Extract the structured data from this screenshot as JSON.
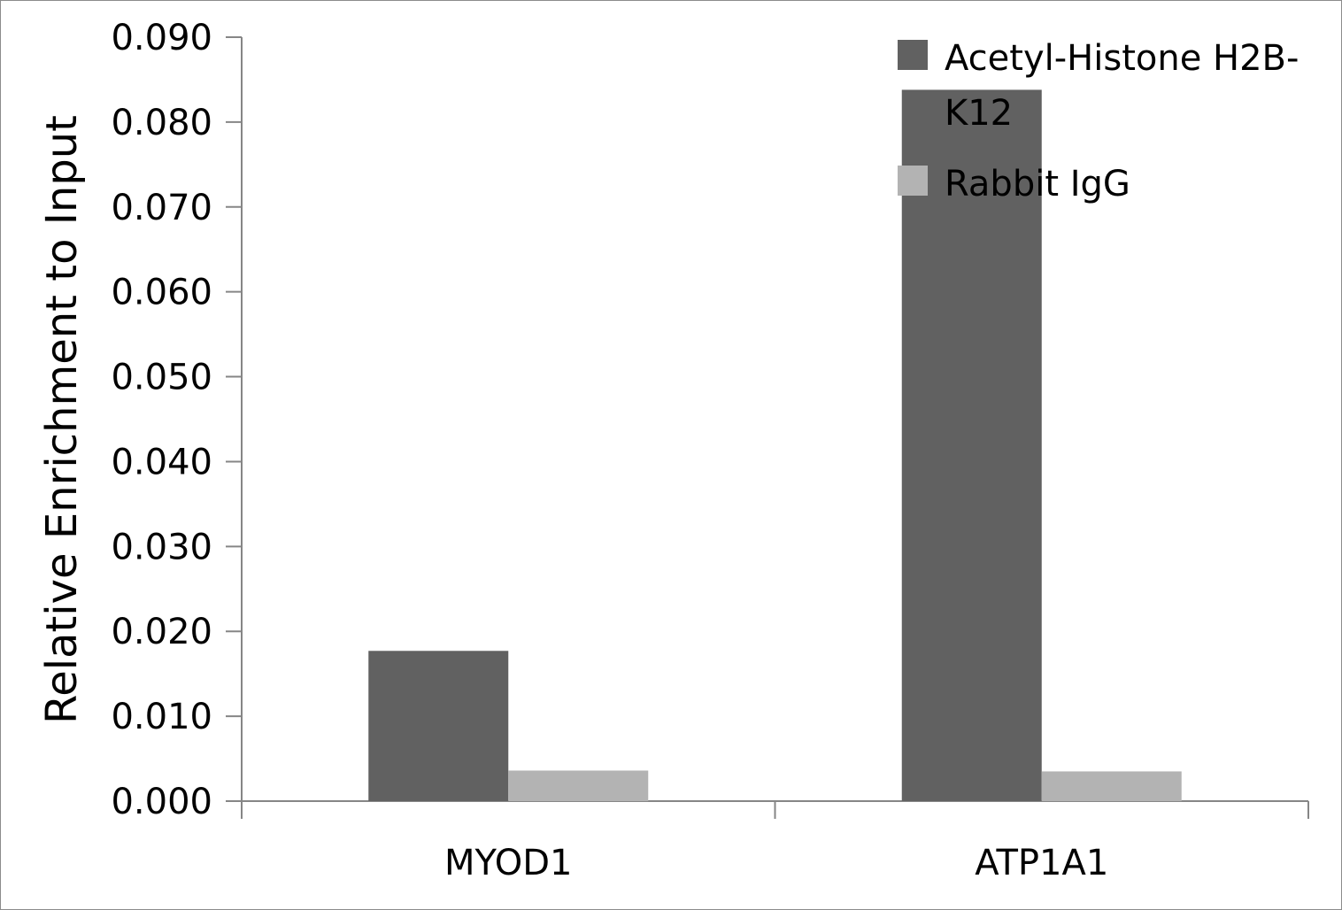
{
  "chart_data": {
    "type": "bar",
    "categories": [
      "MYOD1",
      "ATP1A1"
    ],
    "series": [
      {
        "name": "Acetyl-Histone H2B-K12",
        "legend_lines": [
          "Acetyl-Histone H2B-",
          "K12"
        ],
        "color": "#616161",
        "values": [
          0.0177,
          0.0838
        ]
      },
      {
        "name": "Rabbit IgG",
        "legend_lines": [
          "Rabbit IgG"
        ],
        "color": "#b3b3b3",
        "values": [
          0.0036,
          0.0035
        ]
      }
    ],
    "ylabel": "Relative Enrichment to Input",
    "ylim": [
      0,
      0.09
    ],
    "yticks": [
      "0.000",
      "0.010",
      "0.020",
      "0.030",
      "0.040",
      "0.050",
      "0.060",
      "0.070",
      "0.080",
      "0.090"
    ],
    "grid": false,
    "legend_position": "top-right"
  }
}
